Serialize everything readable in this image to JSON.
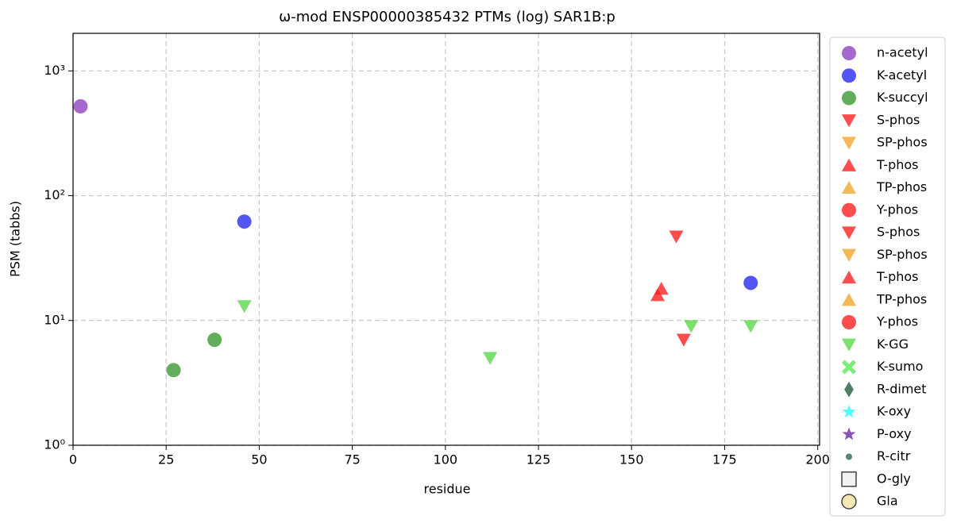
{
  "chart_data": {
    "type": "scatter",
    "title": "ω-mod ENSP00000385432 PTMs (log) SAR1B:p",
    "xlabel": "residue",
    "ylabel": "PSM (tabbs)",
    "xlim": [
      0,
      200.5
    ],
    "ylim": [
      1,
      2000
    ],
    "log_y": true,
    "grid": true,
    "legend": "outside right",
    "xticks": [
      0,
      25,
      50,
      75,
      100,
      125,
      150,
      175,
      200
    ],
    "yticks": [
      {
        "value": 1,
        "label": "10⁰"
      },
      {
        "value": 10,
        "label": "10¹"
      },
      {
        "value": 100,
        "label": "10²"
      },
      {
        "value": 1000,
        "label": "10³"
      }
    ],
    "series": [
      {
        "name": "n-acetyl",
        "color": "#8e44c0",
        "marker": "circle",
        "x": [
          2
        ],
        "values": [
          520
        ]
      },
      {
        "name": "K-acetyl",
        "color": "#2b2bf0",
        "marker": "circle",
        "x": [
          46,
          182
        ],
        "values": [
          62,
          20
        ]
      },
      {
        "name": "K-succyl",
        "color": "#3c9a32",
        "marker": "circle",
        "x": [
          27,
          38
        ],
        "values": [
          4,
          7
        ]
      },
      {
        "name": "S-phos",
        "color": "#ff2020",
        "marker": "triangle-down",
        "x": [
          162,
          164
        ],
        "values": [
          47,
          7
        ]
      },
      {
        "name": "SP-phos",
        "color": "#f0a830",
        "marker": "triangle-down",
        "x": [],
        "values": []
      },
      {
        "name": "T-phos",
        "color": "#ff2020",
        "marker": "triangle-up",
        "x": [
          157,
          158
        ],
        "values": [
          16,
          18
        ]
      },
      {
        "name": "TP-phos",
        "color": "#f0a830",
        "marker": "triangle-up",
        "x": [],
        "values": []
      },
      {
        "name": "Y-phos",
        "color": "#ff2020",
        "marker": "circle",
        "x": [],
        "values": []
      },
      {
        "name": "S-phos",
        "color": "#ff2020",
        "marker": "triangle-down",
        "x": [],
        "values": []
      },
      {
        "name": "SP-phos",
        "color": "#f0a830",
        "marker": "triangle-down",
        "x": [],
        "values": []
      },
      {
        "name": "T-phos",
        "color": "#ff2020",
        "marker": "triangle-up",
        "x": [],
        "values": []
      },
      {
        "name": "TP-phos",
        "color": "#f0a830",
        "marker": "triangle-up",
        "x": [],
        "values": []
      },
      {
        "name": "Y-phos",
        "color": "#ff2020",
        "marker": "circle",
        "x": [],
        "values": []
      },
      {
        "name": "K-GG",
        "color": "#5ad84a",
        "marker": "triangle-down",
        "x": [
          46,
          112,
          166,
          182
        ],
        "values": [
          13,
          5,
          9,
          9
        ]
      },
      {
        "name": "K-sumo",
        "color": "#5ae85a",
        "marker": "x",
        "x": [],
        "values": []
      },
      {
        "name": "R-dimet",
        "color": "#1f5f40",
        "marker": "diamond",
        "x": [],
        "values": []
      },
      {
        "name": "K-oxy",
        "color": "#20ffff",
        "marker": "star",
        "x": [],
        "values": []
      },
      {
        "name": "P-oxy",
        "color": "#6a2aa0",
        "marker": "star",
        "x": [],
        "values": []
      },
      {
        "name": "R-citr",
        "color": "#2a6a4a",
        "marker": "point",
        "x": [],
        "values": []
      },
      {
        "name": "O-gly",
        "color": "#eeeeee",
        "marker": "square-open",
        "x": [],
        "values": []
      },
      {
        "name": "Gla",
        "color": "#f2e3a0",
        "marker": "circle-open",
        "x": [],
        "values": []
      }
    ]
  }
}
